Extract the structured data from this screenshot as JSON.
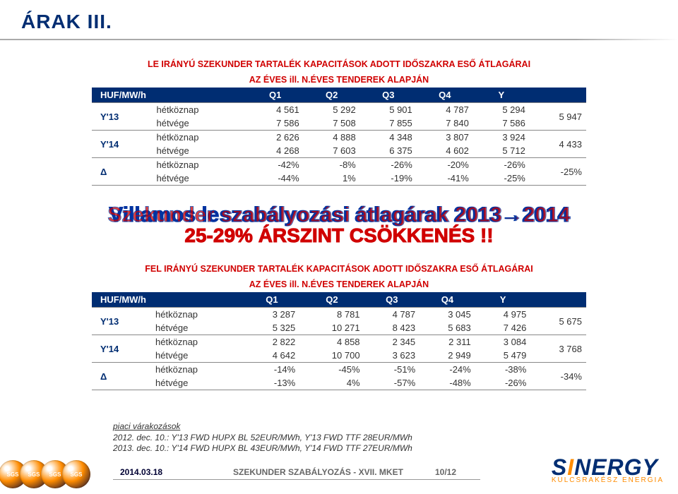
{
  "title": "ÁRAK III.",
  "tables": {
    "down": {
      "caption1": "LE IRÁNYÚ SZEKUNDER TARTALÉK KAPACITÁSOK ADOTT IDŐSZAKRA ESŐ ÁTLAGÁRAI",
      "caption2": "AZ ÉVES ill. N.ÉVES TENDEREK ALAPJÁN",
      "rowhead": "HUF/MW/h",
      "cols": [
        "Q1",
        "Q2",
        "Q3",
        "Q4",
        "Y",
        ""
      ],
      "groups": [
        {
          "label": "Y'13",
          "rows": [
            {
              "sub": "hétköznap",
              "vals": [
                "4 561",
                "5 292",
                "5 901",
                "4 787",
                "5 294"
              ]
            },
            {
              "sub": "hétvége",
              "vals": [
                "7 586",
                "7 508",
                "7 855",
                "7 840",
                "7 586"
              ]
            }
          ],
          "ysum": "5 947"
        },
        {
          "label": "Y'14",
          "rows": [
            {
              "sub": "hétköznap",
              "vals": [
                "2 626",
                "4 888",
                "4 348",
                "3 807",
                "3 924"
              ]
            },
            {
              "sub": "hétvége",
              "vals": [
                "4 268",
                "7 603",
                "6 375",
                "4 602",
                "5 712"
              ]
            }
          ],
          "ysum": "4 433"
        },
        {
          "label": "Δ",
          "rows": [
            {
              "sub": "hétköznap",
              "vals": [
                "-42%",
                "-8%",
                "-26%",
                "-20%",
                "-26%"
              ]
            },
            {
              "sub": "hétvége",
              "vals": [
                "-44%",
                "1%",
                "-19%",
                "-41%",
                "-25%"
              ]
            }
          ],
          "ysum": "-25%"
        }
      ]
    },
    "up": {
      "caption1": "FEL IRÁNYÚ SZEKUNDER TARTALÉK KAPACITÁSOK ADOTT IDŐSZAKRA ESŐ ÁTLAGÁRAI",
      "caption2": "AZ ÉVES ill. N.ÉVES TENDEREK ALAPJÁN",
      "rowhead": "HUF/MW/h",
      "cols": [
        "Q1",
        "Q2",
        "Q3",
        "Q4",
        "Y",
        ""
      ],
      "groups": [
        {
          "label": "Y'13",
          "rows": [
            {
              "sub": "hétköznap",
              "vals": [
                "3 287",
                "8 781",
                "4 787",
                "3 045",
                "4 975"
              ]
            },
            {
              "sub": "hétvége",
              "vals": [
                "5 325",
                "10 271",
                "8 423",
                "5 683",
                "7 426"
              ]
            }
          ],
          "ysum": "5 675"
        },
        {
          "label": "Y'14",
          "rows": [
            {
              "sub": "hétköznap",
              "vals": [
                "2 822",
                "4 858",
                "2 345",
                "2 311",
                "3 084"
              ]
            },
            {
              "sub": "hétvége",
              "vals": [
                "4 642",
                "10 700",
                "3 623",
                "2 949",
                "5 479"
              ]
            }
          ],
          "ysum": "3 768"
        },
        {
          "label": "Δ",
          "rows": [
            {
              "sub": "hétköznap",
              "vals": [
                "-14%",
                "-45%",
                "-51%",
                "-24%",
                "-38%"
              ]
            },
            {
              "sub": "hétvége",
              "vals": [
                "-13%",
                "4%",
                "-57%",
                "-48%",
                "-26%"
              ]
            }
          ],
          "ysum": "-34%"
        }
      ]
    }
  },
  "overlay": {
    "line1a": "Villamos leszabályozási átlagárak 2013→2014",
    "line1b": "Szekunder szabályozási átlagárak 2013→2014",
    "line1c": "Földgáz átlagárak BL/TTF 2013→2014",
    "line2": "25-29% ÁRSZINT CSÖKKENÉS !!"
  },
  "notes": {
    "hdr": "piaci várakozások",
    "l1": "2012. dec. 10.: Y'13 FWD HUPX BL 52EUR/MWh, Y'13 FWD TTF 28EUR/MWh",
    "l2": "2013. dec. 10.: Y'14 FWD HUPX BL 43EUR/MWh, Y'14 FWD TTF 27EUR/MWh"
  },
  "footer": {
    "date": "2014.03.18",
    "center": "SZEKUNDER SZABÁLYOZÁS - XVII. MKET",
    "page": "10/12",
    "sgs": "SGS",
    "logo_main_a": "S",
    "logo_main_i": "I",
    "logo_main_b": "NERGY",
    "logo_sub": "KULCSRAKÉSZ ENERGIA"
  },
  "colors": {
    "brand_blue": "#002d72",
    "accent_orange": "#ff8c00",
    "caption_red": "#d00000"
  }
}
